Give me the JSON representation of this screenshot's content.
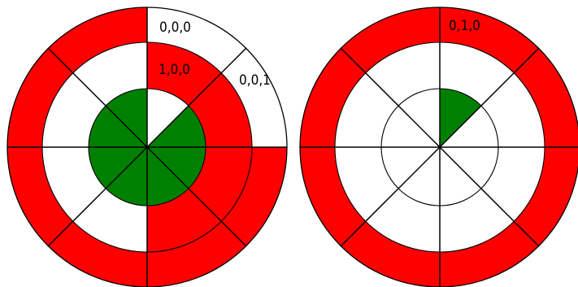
{
  "colors": {
    "red": "#ff0000",
    "green": "#008000",
    "white": "#ffffff",
    "stroke": "#000000"
  },
  "sector_order": "clockwise from 12 o'clock, 8 sectors of 45 degrees each",
  "wheels": [
    {
      "outer_ring": [
        "white",
        "white",
        "red",
        "red",
        "red",
        "red",
        "red",
        "red"
      ],
      "middle_ring": [
        "red",
        "red",
        "red",
        "red",
        "white",
        "white",
        "white",
        "white"
      ],
      "inner_disk": [
        "white",
        "green",
        "green",
        "green",
        "green",
        "green",
        "green",
        "green"
      ],
      "labels": {
        "outer": "0,0,0",
        "middle": "1,0,0",
        "outer_right": "0,0,1"
      }
    },
    {
      "outer_ring": [
        "red",
        "red",
        "red",
        "red",
        "red",
        "red",
        "red",
        "red"
      ],
      "middle_ring": [
        "white",
        "white",
        "white",
        "white",
        "white",
        "white",
        "white",
        "white"
      ],
      "inner_disk": [
        "green",
        "white",
        "white",
        "white",
        "white",
        "white",
        "white",
        "white"
      ],
      "labels": {
        "outer": "0,1,0"
      }
    }
  ]
}
